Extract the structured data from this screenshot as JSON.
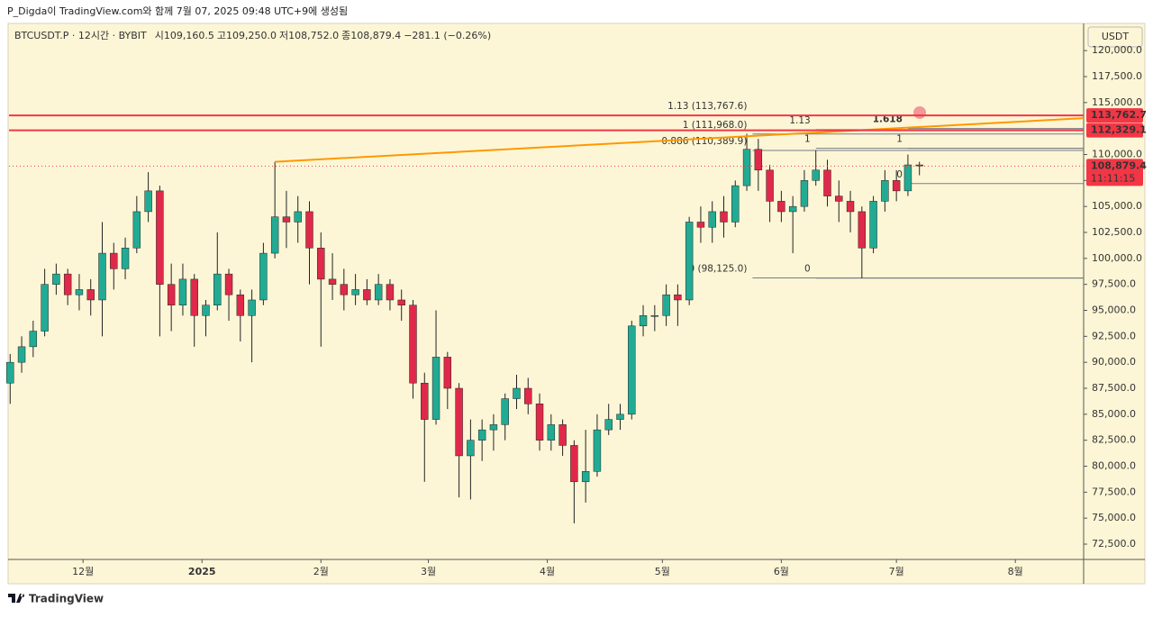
{
  "header": {
    "title": "P_Digda이 TradingView.com와 함께 7월 07, 2025 09:48 UTC+9에 생성됨",
    "symbol": "BTCUSDT.P · 12시간 · BYBIT",
    "ohlc": [
      {
        "label": "시",
        "value": "109,160.5"
      },
      {
        "label": "고",
        "value": "109,250.0"
      },
      {
        "label": "저",
        "value": "108,752.0"
      },
      {
        "label": "종",
        "value": "108,879.4"
      }
    ],
    "change": "−281.1 (−0.26%)"
  },
  "footer": {
    "brand": "TradingView"
  },
  "chart_data": {
    "type": "candlestick",
    "x": [
      -19,
      -16,
      -13,
      -10,
      -7,
      -4,
      -1,
      2,
      5,
      8,
      11,
      14,
      17,
      20,
      23,
      26,
      29,
      32,
      35,
      38,
      41,
      44,
      47,
      50,
      53,
      56,
      59,
      62,
      65,
      68,
      71,
      74,
      77,
      80,
      83,
      86,
      89,
      92,
      95,
      98,
      101,
      104,
      107,
      110,
      113,
      116,
      119,
      122,
      125,
      128,
      131,
      134,
      137,
      140,
      143,
      146,
      149,
      152,
      155,
      158,
      161,
      164,
      167,
      170,
      173,
      176,
      179,
      182,
      185,
      188,
      191,
      194,
      197,
      200,
      203,
      206,
      209,
      212,
      215,
      218
    ],
    "open": [
      88000,
      90000,
      91500,
      93000,
      97500,
      98500,
      96500,
      97000,
      96000,
      100500,
      99000,
      101000,
      104500,
      106500,
      97500,
      95500,
      98000,
      94500,
      95500,
      98500,
      96500,
      94500,
      96000,
      100500,
      104000,
      103500,
      104500,
      101000,
      98000,
      97500,
      96500,
      97000,
      96000,
      97500,
      96000,
      95500,
      88000,
      84500,
      90500,
      87500,
      81000,
      82500,
      83500,
      84000,
      86500,
      87500,
      86000,
      82500,
      84000,
      82000,
      78500,
      79500,
      83500,
      84500,
      85000,
      93500,
      94500,
      94500,
      96500,
      96000,
      103500,
      103000,
      104500,
      103500,
      107000,
      110500,
      108500,
      105500,
      104500,
      105000,
      107500,
      108500,
      106000,
      105500,
      104500,
      101000,
      105500,
      107500,
      106500,
      109000
    ],
    "high": [
      90800,
      92500,
      94000,
      99000,
      99500,
      99000,
      98500,
      98000,
      103500,
      101500,
      102000,
      106000,
      108300,
      107000,
      99500,
      99500,
      98500,
      96000,
      102500,
      99000,
      97000,
      97000,
      101500,
      109300,
      106500,
      106000,
      105500,
      102500,
      100500,
      99000,
      98500,
      98000,
      98500,
      98000,
      97000,
      96000,
      89000,
      95000,
      91000,
      88000,
      84500,
      84500,
      85000,
      87000,
      88800,
      88500,
      87000,
      85000,
      84500,
      82500,
      83500,
      85000,
      86000,
      86000,
      94000,
      95500,
      95500,
      97500,
      97500,
      104000,
      105000,
      105500,
      106000,
      107500,
      112000,
      111500,
      109000,
      106500,
      106000,
      108500,
      110400,
      109500,
      107500,
      106500,
      105000,
      106000,
      108500,
      108500,
      110000,
      109300
    ],
    "low": [
      86000,
      89000,
      90500,
      92500,
      96500,
      95500,
      95000,
      94500,
      92500,
      97000,
      98000,
      100500,
      103500,
      92500,
      93000,
      94500,
      91500,
      92500,
      95000,
      94000,
      92000,
      90000,
      95500,
      100000,
      101000,
      101500,
      97500,
      91500,
      96000,
      95000,
      95500,
      95500,
      95500,
      95000,
      94000,
      86500,
      78500,
      84000,
      85500,
      77000,
      76800,
      80500,
      81500,
      82500,
      85500,
      85000,
      81500,
      81500,
      81000,
      74500,
      76500,
      79000,
      83000,
      83500,
      84500,
      92500,
      93000,
      93500,
      93500,
      95500,
      101500,
      101500,
      102000,
      103000,
      106500,
      106500,
      103500,
      103500,
      100500,
      104500,
      107000,
      105000,
      103500,
      102500,
      98100,
      100500,
      104500,
      105500,
      106000,
      108000
    ],
    "close": [
      90000,
      91500,
      93000,
      97500,
      98500,
      96500,
      97000,
      96000,
      100500,
      99000,
      101000,
      104500,
      106500,
      97500,
      95500,
      98000,
      94500,
      95500,
      98500,
      96500,
      94500,
      96000,
      100500,
      104000,
      103500,
      104500,
      101000,
      98000,
      97500,
      96500,
      97000,
      96000,
      97500,
      96000,
      95500,
      88000,
      84500,
      90500,
      87500,
      81000,
      82500,
      83500,
      84000,
      86500,
      87500,
      86000,
      82500,
      84000,
      82000,
      78500,
      79500,
      83500,
      84500,
      85000,
      93500,
      94500,
      94500,
      96500,
      96000,
      103500,
      103000,
      104500,
      103500,
      107000,
      110500,
      108500,
      105500,
      104500,
      105000,
      107500,
      108500,
      106000,
      105500,
      104500,
      101000,
      105500,
      107500,
      106500,
      109000,
      108900
    ],
    "up_color": "#22ab94",
    "down_color": "#e0294a",
    "xlim": [
      -19.3,
      260.8
    ],
    "xticks": [
      {
        "value": 0,
        "label": "12월"
      },
      {
        "value": 31,
        "label": "2025"
      },
      {
        "value": 62,
        "label": "2월"
      },
      {
        "value": 90,
        "label": "3월"
      },
      {
        "value": 121,
        "label": "4월"
      },
      {
        "value": 151,
        "label": "5월"
      },
      {
        "value": 182,
        "label": "6월"
      },
      {
        "value": 212,
        "label": "7월"
      },
      {
        "value": 243,
        "label": "8월"
      }
    ],
    "ylim": [
      71026,
      122616
    ],
    "yticks": [
      {
        "value": 72500,
        "label": "72,500.0"
      },
      {
        "value": 75000,
        "label": "75,000.0"
      },
      {
        "value": 77500,
        "label": "77,500.0"
      },
      {
        "value": 80000,
        "label": "80,000.0"
      },
      {
        "value": 82500,
        "label": "82,500.0"
      },
      {
        "value": 85000,
        "label": "85,000.0"
      },
      {
        "value": 87500,
        "label": "87,500.0"
      },
      {
        "value": 90000,
        "label": "90,000.0"
      },
      {
        "value": 92500,
        "label": "92,500.0"
      },
      {
        "value": 95000,
        "label": "95,000.0"
      },
      {
        "value": 97500,
        "label": "97,500.0"
      },
      {
        "value": 100000,
        "label": "100,000.0"
      },
      {
        "value": 102500,
        "label": "102,500.0"
      },
      {
        "value": 105000,
        "label": "105,000.0"
      },
      {
        "value": 107500,
        "label": "107,500.0"
      },
      {
        "value": 110000,
        "label": "110,000.0"
      },
      {
        "value": 115000,
        "label": "115,000.0"
      },
      {
        "value": 117500,
        "label": "117,500.0"
      },
      {
        "value": 120000,
        "label": "120,000.0"
      }
    ],
    "currency": "USDT",
    "horizontal_lines": [
      {
        "value": 113762.7,
        "label": "113,762.7",
        "color": "#f23645"
      },
      {
        "value": 112329.1,
        "label": "112,329.1",
        "color": "#f23645"
      }
    ],
    "last_price": {
      "value": 108879.4,
      "label": "108,879.4",
      "countdown": "11:11:15",
      "color": "#f23645"
    },
    "trendline": {
      "x": [
        50,
        260.8
      ],
      "y": [
        109300,
        113500
      ],
      "color": "#ff9800"
    },
    "fib": [
      {
        "x_start": 174.5,
        "color": "#787b86",
        "levels": [
          {
            "value": 113767.6,
            "label": "1.13 (113,767.6)",
            "color": "#7e57c2"
          },
          {
            "value": 111968.0,
            "label": "1 (111,968.0)",
            "color": "#555555"
          },
          {
            "value": 110389.9,
            "label": "0.886 (110,389.9)",
            "color": "#555555"
          },
          {
            "value": 98125.0,
            "label": "0 (98,125.0)",
            "color": "#555555"
          }
        ]
      },
      {
        "x_start": 191,
        "color": "#787b86",
        "levels": [
          {
            "value": 112400,
            "label": "1.13",
            "color": "#7e57c2"
          },
          {
            "value": 110600,
            "label": "1",
            "color": "#555555"
          },
          {
            "value": 98100,
            "label": "0",
            "color": "#555555"
          }
        ]
      },
      {
        "x_start": 215,
        "color": "#787b86",
        "levels": [
          {
            "value": 112500,
            "label": "1.618",
            "color": "#000000"
          },
          {
            "value": 110600,
            "label": "1",
            "color": "#555555"
          },
          {
            "value": 107200,
            "label": "0",
            "color": "#555555"
          }
        ]
      }
    ]
  }
}
